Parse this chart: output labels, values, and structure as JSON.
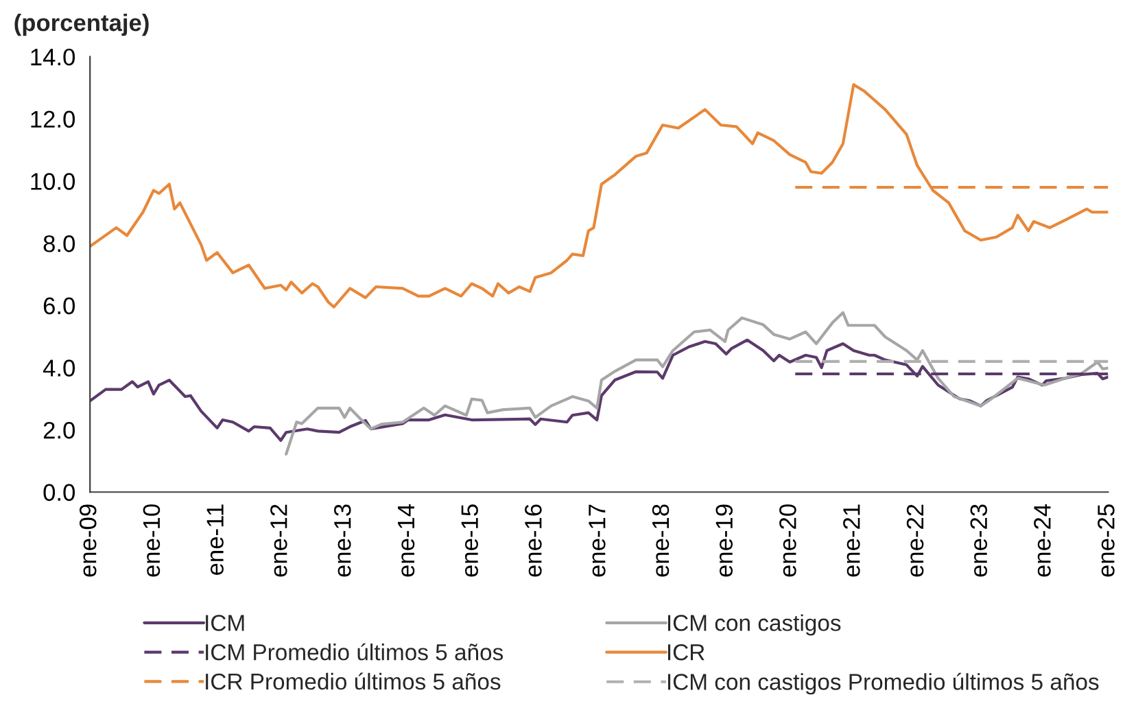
{
  "chart_data": {
    "type": "line",
    "title": "(porcentaje)",
    "xlim": [
      "2009-01",
      "2025-01"
    ],
    "ylim": [
      0,
      14
    ],
    "xticks": [
      {
        "value": "2009-01",
        "label": "ene-09"
      },
      {
        "value": "2010-01",
        "label": "ene-10"
      },
      {
        "value": "2011-01",
        "label": "ene-11"
      },
      {
        "value": "2012-01",
        "label": "ene-12"
      },
      {
        "value": "2013-01",
        "label": "ene-13"
      },
      {
        "value": "2014-01",
        "label": "ene-14"
      },
      {
        "value": "2015-01",
        "label": "ene-15"
      },
      {
        "value": "2016-01",
        "label": "ene-16"
      },
      {
        "value": "2017-01",
        "label": "ene-17"
      },
      {
        "value": "2018-01",
        "label": "ene-18"
      },
      {
        "value": "2019-01",
        "label": "ene-19"
      },
      {
        "value": "2020-01",
        "label": "ene-20"
      },
      {
        "value": "2021-01",
        "label": "ene-21"
      },
      {
        "value": "2022-01",
        "label": "ene-22"
      },
      {
        "value": "2023-01",
        "label": "ene-23"
      },
      {
        "value": "2024-01",
        "label": "ene-24"
      },
      {
        "value": "2025-01",
        "label": "ene-25"
      }
    ],
    "yticks": [
      {
        "value": 0,
        "label": "0.0"
      },
      {
        "value": 2,
        "label": "2.0"
      },
      {
        "value": 4,
        "label": "4.0"
      },
      {
        "value": 6,
        "label": "6.0"
      },
      {
        "value": 8,
        "label": "8.0"
      },
      {
        "value": 10,
        "label": "10.0"
      },
      {
        "value": 12,
        "label": "12.0"
      },
      {
        "value": 14,
        "label": "14.0"
      }
    ],
    "grid": false,
    "legend": "bottom",
    "marker": "none",
    "series": [
      {
        "name": "ICM",
        "color": "#5b3a6b",
        "line_style": "solid",
        "x": [
          "2009-01",
          "2009-04",
          "2009-07",
          "2009-09",
          "2009-10",
          "2009-12",
          "2010-01",
          "2010-02",
          "2010-04",
          "2010-07",
          "2010-08",
          "2010-10",
          "2011-01",
          "2011-02",
          "2011-04",
          "2011-07",
          "2011-08",
          "2011-11",
          "2012-01",
          "2012-02",
          "2012-06",
          "2012-08",
          "2012-12",
          "2013-02",
          "2013-05",
          "2013-06",
          "2013-12",
          "2014-01",
          "2014-05",
          "2014-08",
          "2015-01",
          "2015-12",
          "2016-01",
          "2016-02",
          "2016-07",
          "2016-08",
          "2016-11",
          "2016-12-20",
          "2017-01-15",
          "2017-04",
          "2017-08",
          "2017-12",
          "2018-01",
          "2018-03",
          "2018-06",
          "2018-09",
          "2018-11",
          "2019-01",
          "2019-02",
          "2019-05",
          "2019-08",
          "2019-10",
          "2019-11",
          "2020-01",
          "2020-04",
          "2020-06",
          "2020-07",
          "2020-08",
          "2020-11",
          "2021-01",
          "2021-04",
          "2021-05",
          "2021-07",
          "2021-11",
          "2022-01",
          "2022-02",
          "2022-05",
          "2022-09",
          "2022-11",
          "2023-01",
          "2023-02",
          "2023-07",
          "2023-08",
          "2023-10",
          "2023-12-20",
          "2024-01-12",
          "2024-05",
          "2024-08",
          "2024-11",
          "2024-12",
          "2025-01"
        ],
        "values": [
          2.93,
          3.3,
          3.3,
          3.55,
          3.38,
          3.55,
          3.15,
          3.44,
          3.6,
          3.07,
          3.1,
          2.6,
          2.06,
          2.32,
          2.25,
          1.96,
          2.1,
          2.06,
          1.66,
          1.92,
          2.03,
          1.96,
          1.92,
          2.1,
          2.3,
          2.03,
          2.2,
          2.32,
          2.32,
          2.48,
          2.32,
          2.35,
          2.17,
          2.35,
          2.25,
          2.47,
          2.55,
          2.32,
          3.1,
          3.6,
          3.87,
          3.86,
          3.66,
          4.4,
          4.67,
          4.84,
          4.77,
          4.44,
          4.62,
          4.89,
          4.55,
          4.22,
          4.4,
          4.18,
          4.4,
          4.33,
          4.0,
          4.55,
          4.77,
          4.55,
          4.4,
          4.4,
          4.25,
          4.09,
          3.73,
          4.04,
          3.44,
          3.0,
          2.93,
          2.77,
          2.93,
          3.37,
          3.7,
          3.64,
          3.44,
          3.58,
          3.66,
          3.78,
          3.82,
          3.64,
          3.7
        ]
      },
      {
        "name": "ICM con castigos",
        "color": "#a6a6a6",
        "line_style": "solid",
        "x": [
          "2012-02",
          "2012-04",
          "2012-05",
          "2012-08",
          "2012-12",
          "2013-01",
          "2013-02",
          "2013-04",
          "2013-06",
          "2013-08",
          "2013-12",
          "2014-04",
          "2014-06",
          "2014-08",
          "2014-12",
          "2015-01",
          "2015-03",
          "2015-04",
          "2015-07",
          "2015-12",
          "2016-01",
          "2016-04",
          "2016-07",
          "2016-08",
          "2016-11",
          "2016-12-20",
          "2017-01-15",
          "2017-04",
          "2017-08",
          "2017-12",
          "2018-01",
          "2018-03",
          "2018-07",
          "2018-10",
          "2018-12-25",
          "2019-01-12",
          "2019-04",
          "2019-08",
          "2019-10",
          "2020-01",
          "2020-04",
          "2020-06",
          "2020-09",
          "2020-11",
          "2020-12",
          "2021-05",
          "2021-07",
          "2021-11",
          "2022-01",
          "2022-02",
          "2022-05",
          "2022-08",
          "2023-01",
          "2023-03",
          "2023-08",
          "2024-01",
          "2024-05",
          "2024-08",
          "2024-11",
          "2024-12",
          "2025-01"
        ],
        "values": [
          1.22,
          2.25,
          2.2,
          2.7,
          2.7,
          2.4,
          2.7,
          2.36,
          2.03,
          2.18,
          2.25,
          2.7,
          2.47,
          2.77,
          2.47,
          2.99,
          2.95,
          2.55,
          2.65,
          2.7,
          2.4,
          2.77,
          2.99,
          3.07,
          2.93,
          2.7,
          3.6,
          3.88,
          4.25,
          4.25,
          4.03,
          4.55,
          5.15,
          5.21,
          4.84,
          5.21,
          5.6,
          5.38,
          5.07,
          4.92,
          5.15,
          4.77,
          5.44,
          5.77,
          5.36,
          5.36,
          4.99,
          4.55,
          4.25,
          4.55,
          3.66,
          3.07,
          2.77,
          2.99,
          3.66,
          3.44,
          3.66,
          3.81,
          4.18,
          3.96,
          3.99
        ]
      },
      {
        "name": "ICM Promedio últimos 5 años",
        "color": "#5b3a6b",
        "line_style": "dashed",
        "x": [
          "2020-02",
          "2025-01"
        ],
        "values": [
          3.8,
          3.8
        ]
      },
      {
        "name": "ICR",
        "color": "#e8883a",
        "line_style": "solid",
        "x": [
          "2009-01",
          "2009-06",
          "2009-08",
          "2009-11",
          "2010-01",
          "2010-02",
          "2010-04",
          "2010-05",
          "2010-06",
          "2010-10",
          "2010-11",
          "2011-01",
          "2011-04",
          "2011-07",
          "2011-10",
          "2012-01",
          "2012-02",
          "2012-03",
          "2012-05",
          "2012-07",
          "2012-08",
          "2012-10",
          "2012-11",
          "2013-02",
          "2013-05",
          "2013-07",
          "2013-12",
          "2014-03",
          "2014-05",
          "2014-08",
          "2014-11",
          "2015-01",
          "2015-03",
          "2015-05",
          "2015-06",
          "2015-08",
          "2015-10",
          "2015-12",
          "2016-01",
          "2016-04",
          "2016-07",
          "2016-08",
          "2016-10",
          "2016-11",
          "2016-12",
          "2017-01-15",
          "2017-04",
          "2017-08",
          "2017-10",
          "2018-01",
          "2018-04",
          "2018-09",
          "2018-12",
          "2019-03",
          "2019-06",
          "2019-07",
          "2019-10",
          "2020-01",
          "2020-04",
          "2020-05",
          "2020-07",
          "2020-09",
          "2020-11",
          "2021-01",
          "2021-03",
          "2021-05",
          "2021-07",
          "2021-11",
          "2022-01",
          "2022-04",
          "2022-07",
          "2022-10",
          "2023-01",
          "2023-04",
          "2023-07",
          "2023-08",
          "2023-10",
          "2023-11",
          "2024-02",
          "2024-05",
          "2024-09",
          "2024-10",
          "2025-01"
        ],
        "values": [
          7.9,
          8.5,
          8.25,
          9.0,
          9.7,
          9.6,
          9.9,
          9.1,
          9.3,
          7.95,
          7.45,
          7.7,
          7.05,
          7.3,
          6.55,
          6.65,
          6.5,
          6.75,
          6.4,
          6.7,
          6.6,
          6.1,
          5.95,
          6.55,
          6.25,
          6.6,
          6.55,
          6.3,
          6.3,
          6.55,
          6.3,
          6.7,
          6.55,
          6.3,
          6.7,
          6.4,
          6.6,
          6.45,
          6.9,
          7.05,
          7.45,
          7.65,
          7.6,
          8.4,
          8.5,
          9.9,
          10.2,
          10.8,
          10.9,
          11.8,
          11.7,
          12.3,
          11.8,
          11.75,
          11.2,
          11.55,
          11.3,
          10.85,
          10.6,
          10.3,
          10.25,
          10.6,
          11.2,
          13.1,
          12.9,
          12.6,
          12.3,
          11.5,
          10.5,
          9.7,
          9.3,
          8.4,
          8.1,
          8.2,
          8.5,
          8.9,
          8.4,
          8.7,
          8.5,
          8.75,
          9.1,
          9.0,
          9.0
        ]
      },
      {
        "name": "ICR Promedio últimos 5 años",
        "color": "#e8883a",
        "line_style": "dashed",
        "x": [
          "2020-02",
          "2025-01"
        ],
        "values": [
          9.8,
          9.8
        ]
      },
      {
        "name": "ICM con castigos Promedio últimos 5 años",
        "color": "#b0b0b0",
        "line_style": "dashed",
        "x": [
          "2020-02",
          "2025-01"
        ],
        "values": [
          4.2,
          4.2
        ]
      }
    ]
  }
}
